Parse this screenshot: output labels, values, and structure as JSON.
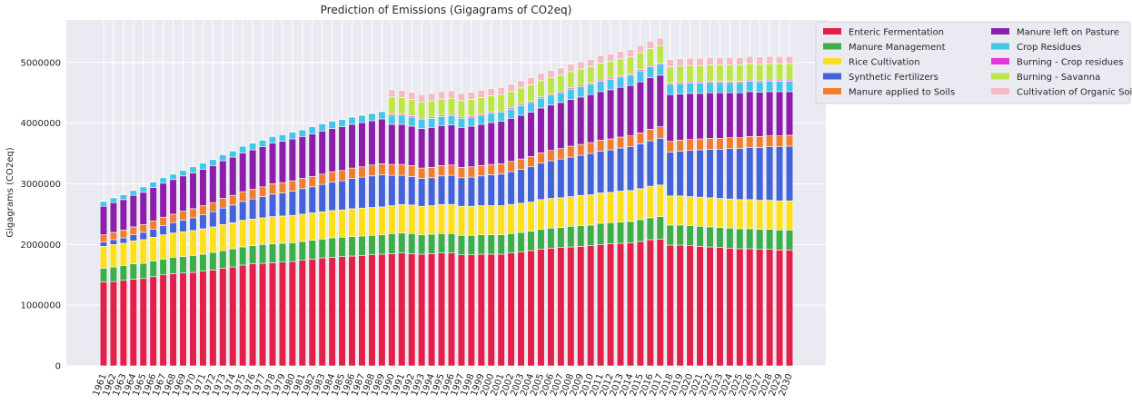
{
  "chart_data": {
    "type": "bar",
    "stacked": true,
    "title": "Prediction of Emissions (Gigagrams of CO2eq)",
    "xlabel": "",
    "ylabel": "Gigagrams (CO2eq)",
    "ylim": [
      0,
      5700000
    ],
    "yticks": [
      0,
      1000000,
      2000000,
      3000000,
      4000000,
      5000000
    ],
    "grid": true,
    "legend_position": "top-right outside",
    "colors": {
      "background": "#eaeaf2",
      "grid": "#ffffff"
    },
    "categories": [
      "1961",
      "1962",
      "1963",
      "1964",
      "1965",
      "1966",
      "1967",
      "1968",
      "1969",
      "1970",
      "1971",
      "1972",
      "1973",
      "1974",
      "1975",
      "1976",
      "1977",
      "1978",
      "1979",
      "1980",
      "1981",
      "1982",
      "1983",
      "1984",
      "1985",
      "1986",
      "1987",
      "1988",
      "1989",
      "1990",
      "1991",
      "1992",
      "1993",
      "1994",
      "1995",
      "1996",
      "1997",
      "1998",
      "1999",
      "2000",
      "2001",
      "2002",
      "2003",
      "2004",
      "2005",
      "2006",
      "2007",
      "2008",
      "2009",
      "2010",
      "2011",
      "2012",
      "2013",
      "2014",
      "2015",
      "2016",
      "2017",
      "2018",
      "2019",
      "2020",
      "2021",
      "2022",
      "2023",
      "2024",
      "2025",
      "2026",
      "2027",
      "2028",
      "2029",
      "2030"
    ],
    "series": [
      {
        "name": "Enteric Fermentation",
        "color": "#e2214b",
        "values": [
          1380000,
          1390000,
          1410000,
          1430000,
          1440000,
          1470000,
          1500000,
          1520000,
          1530000,
          1540000,
          1560000,
          1580000,
          1610000,
          1630000,
          1660000,
          1680000,
          1690000,
          1700000,
          1710000,
          1720000,
          1740000,
          1760000,
          1780000,
          1790000,
          1800000,
          1810000,
          1820000,
          1830000,
          1840000,
          1850000,
          1860000,
          1850000,
          1840000,
          1850000,
          1860000,
          1860000,
          1830000,
          1830000,
          1840000,
          1840000,
          1840000,
          1860000,
          1880000,
          1900000,
          1920000,
          1940000,
          1950000,
          1960000,
          1970000,
          1980000,
          2000000,
          2010000,
          2020000,
          2030000,
          2050000,
          2080000,
          2090000,
          1990000,
          1990000,
          1980000,
          1970000,
          1960000,
          1950000,
          1940000,
          1930000,
          1930000,
          1920000,
          1920000,
          1910000,
          1910000
        ]
      },
      {
        "name": "Manure Management",
        "color": "#3cae4a",
        "values": [
          230000,
          240000,
          240000,
          250000,
          250000,
          260000,
          260000,
          270000,
          270000,
          280000,
          280000,
          290000,
          290000,
          300000,
          300000,
          300000,
          310000,
          310000,
          310000,
          310000,
          310000,
          310000,
          310000,
          320000,
          320000,
          320000,
          320000,
          320000,
          320000,
          330000,
          330000,
          330000,
          320000,
          320000,
          320000,
          320000,
          320000,
          320000,
          320000,
          320000,
          320000,
          320000,
          320000,
          320000,
          330000,
          330000,
          330000,
          340000,
          340000,
          340000,
          350000,
          350000,
          350000,
          350000,
          360000,
          360000,
          370000,
          330000,
          330000,
          330000,
          330000,
          330000,
          330000,
          330000,
          330000,
          330000,
          330000,
          330000,
          330000,
          330000
        ]
      },
      {
        "name": "Rice Cultivation",
        "color": "#fde01a",
        "values": [
          360000,
          370000,
          370000,
          380000,
          390000,
          390000,
          400000,
          400000,
          410000,
          410000,
          420000,
          420000,
          430000,
          430000,
          440000,
          440000,
          440000,
          450000,
          450000,
          450000,
          450000,
          450000,
          450000,
          450000,
          450000,
          460000,
          460000,
          460000,
          460000,
          460000,
          470000,
          470000,
          470000,
          470000,
          480000,
          480000,
          480000,
          480000,
          480000,
          480000,
          480000,
          480000,
          480000,
          480000,
          490000,
          490000,
          490000,
          490000,
          500000,
          500000,
          500000,
          500000,
          510000,
          510000,
          510000,
          520000,
          520000,
          480000,
          480000,
          480000,
          480000,
          480000,
          480000,
          480000,
          480000,
          480000,
          480000,
          480000,
          480000,
          480000
        ]
      },
      {
        "name": "Synthetic Fertilizers",
        "color": "#4363d8",
        "values": [
          70000,
          80000,
          90000,
          100000,
          120000,
          130000,
          150000,
          170000,
          190000,
          210000,
          230000,
          250000,
          270000,
          290000,
          310000,
          330000,
          350000,
          370000,
          380000,
          400000,
          420000,
          430000,
          450000,
          470000,
          480000,
          500000,
          510000,
          520000,
          530000,
          500000,
          480000,
          470000,
          460000,
          460000,
          470000,
          480000,
          470000,
          480000,
          490000,
          510000,
          520000,
          540000,
          560000,
          580000,
          600000,
          620000,
          640000,
          650000,
          660000,
          680000,
          690000,
          700000,
          710000,
          720000,
          740000,
          750000,
          770000,
          720000,
          740000,
          760000,
          780000,
          800000,
          810000,
          830000,
          840000,
          860000,
          870000,
          880000,
          890000,
          900000
        ]
      },
      {
        "name": "Manure applied to Soils",
        "color": "#f07e2f",
        "values": [
          120000,
          120000,
          130000,
          130000,
          130000,
          140000,
          140000,
          140000,
          150000,
          150000,
          150000,
          150000,
          160000,
          160000,
          160000,
          160000,
          160000,
          170000,
          170000,
          170000,
          170000,
          170000,
          170000,
          170000,
          170000,
          170000,
          170000,
          180000,
          180000,
          180000,
          180000,
          180000,
          170000,
          170000,
          170000,
          170000,
          170000,
          170000,
          170000,
          170000,
          170000,
          170000,
          170000,
          170000,
          170000,
          170000,
          170000,
          180000,
          180000,
          180000,
          180000,
          180000,
          180000,
          180000,
          180000,
          190000,
          190000,
          180000,
          180000,
          180000,
          180000,
          180000,
          180000,
          180000,
          180000,
          180000,
          180000,
          180000,
          180000,
          180000
        ]
      },
      {
        "name": "Manure left on Pasture",
        "color": "#8b1fa9",
        "values": [
          470000,
          490000,
          500000,
          520000,
          530000,
          550000,
          560000,
          570000,
          580000,
          590000,
          600000,
          610000,
          620000,
          630000,
          640000,
          650000,
          660000,
          670000,
          680000,
          690000,
          690000,
          700000,
          710000,
          710000,
          720000,
          720000,
          730000,
          730000,
          740000,
          660000,
          660000,
          650000,
          650000,
          660000,
          660000,
          660000,
          660000,
          670000,
          680000,
          690000,
          700000,
          710000,
          720000,
          730000,
          740000,
          750000,
          760000,
          770000,
          780000,
          790000,
          800000,
          810000,
          820000,
          830000,
          840000,
          850000,
          850000,
          770000,
          760000,
          760000,
          750000,
          750000,
          750000,
          740000,
          740000,
          740000,
          730000,
          730000,
          730000,
          720000
        ]
      },
      {
        "name": "Crop Residues",
        "color": "#45c8e8",
        "values": [
          80000,
          80000,
          80000,
          80000,
          90000,
          90000,
          90000,
          90000,
          90000,
          100000,
          100000,
          100000,
          100000,
          100000,
          110000,
          110000,
          110000,
          110000,
          110000,
          110000,
          110000,
          120000,
          120000,
          120000,
          120000,
          120000,
          120000,
          120000,
          120000,
          150000,
          150000,
          150000,
          150000,
          150000,
          150000,
          150000,
          150000,
          150000,
          150000,
          150000,
          150000,
          150000,
          160000,
          160000,
          160000,
          160000,
          160000,
          170000,
          170000,
          170000,
          170000,
          170000,
          170000,
          170000,
          180000,
          180000,
          180000,
          170000,
          170000,
          170000,
          170000,
          170000,
          170000,
          170000,
          170000,
          170000,
          170000,
          170000,
          170000,
          170000
        ]
      },
      {
        "name": "Burning - Crop residues",
        "color": "#e834d8",
        "values": [
          10000,
          10000,
          10000,
          10000,
          10000,
          10000,
          10000,
          10000,
          10000,
          10000,
          10000,
          10000,
          10000,
          10000,
          10000,
          10000,
          10000,
          10000,
          10000,
          10000,
          10000,
          10000,
          10000,
          10000,
          10000,
          10000,
          10000,
          10000,
          10000,
          20000,
          20000,
          20000,
          20000,
          20000,
          20000,
          20000,
          20000,
          20000,
          20000,
          20000,
          20000,
          20000,
          20000,
          20000,
          20000,
          20000,
          20000,
          20000,
          20000,
          20000,
          20000,
          20000,
          20000,
          20000,
          20000,
          20000,
          20000,
          20000,
          20000,
          20000,
          20000,
          20000,
          20000,
          20000,
          20000,
          20000,
          20000,
          20000,
          20000,
          20000
        ]
      },
      {
        "name": "Burning - Savanna",
        "color": "#bce649",
        "values": [
          0,
          0,
          0,
          0,
          0,
          0,
          0,
          0,
          0,
          0,
          0,
          0,
          0,
          0,
          0,
          0,
          0,
          0,
          0,
          0,
          0,
          0,
          0,
          0,
          0,
          0,
          0,
          0,
          0,
          280000,
          270000,
          270000,
          270000,
          270000,
          270000,
          270000,
          270000,
          270000,
          270000,
          270000,
          270000,
          270000,
          270000,
          270000,
          270000,
          270000,
          270000,
          270000,
          270000,
          270000,
          280000,
          280000,
          280000,
          280000,
          280000,
          280000,
          290000,
          270000,
          270000,
          270000,
          270000,
          270000,
          270000,
          270000,
          270000,
          270000,
          270000,
          270000,
          270000,
          270000
        ]
      },
      {
        "name": "Cultivation of Organic Soils",
        "color": "#f6bcc6",
        "values": [
          0,
          0,
          0,
          0,
          0,
          0,
          0,
          0,
          0,
          0,
          0,
          0,
          0,
          0,
          0,
          0,
          0,
          0,
          0,
          0,
          0,
          0,
          0,
          0,
          0,
          0,
          0,
          0,
          0,
          120000,
          120000,
          120000,
          120000,
          120000,
          120000,
          120000,
          120000,
          120000,
          120000,
          120000,
          120000,
          120000,
          120000,
          120000,
          120000,
          120000,
          120000,
          120000,
          120000,
          120000,
          120000,
          120000,
          120000,
          120000,
          120000,
          120000,
          120000,
          120000,
          120000,
          120000,
          120000,
          120000,
          120000,
          120000,
          120000,
          120000,
          120000,
          120000,
          120000,
          120000
        ]
      }
    ]
  }
}
